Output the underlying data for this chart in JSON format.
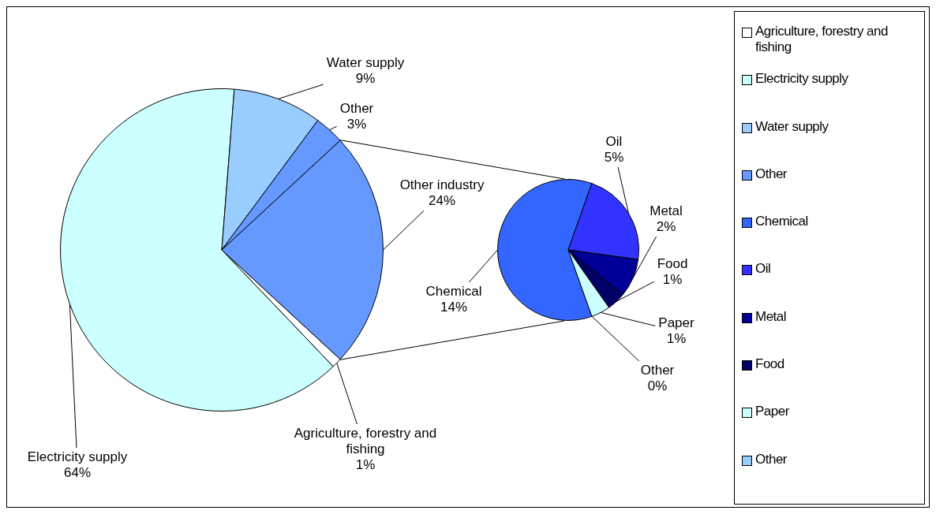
{
  "chart_data": [
    {
      "type": "pie",
      "categories": [
        "Agriculture, forestry and fishing",
        "Electricity supply",
        "Water supply",
        "Other",
        null
      ],
      "values": [
        1,
        64,
        9,
        3,
        24
      ],
      "colors": [
        "#ffffff",
        "#ccffff",
        "#99ccff",
        "#6699ff",
        "#6699ff"
      ],
      "value_labels": [
        "Agriculture, forestry and\nfishing\n1%",
        "Electricity supply\n64%",
        "Water supply\n9%",
        "Other\n3%",
        "Other industry\n24%"
      ],
      "legend": "right"
    },
    {
      "type": "pie",
      "categories": [
        "Chemical",
        "Oil",
        "Metal",
        "Food",
        "Paper",
        "Other"
      ],
      "values": [
        14,
        5,
        2,
        1,
        1,
        0
      ],
      "colors": [
        "#3366ff",
        "#3333ff",
        "#000099",
        "#000066",
        "#ccffff",
        "#99ccff"
      ],
      "value_labels": [
        "Chemical\n14%",
        "Oil\n5%",
        "Metal\n2%",
        "Food\n1%",
        "Paper\n1%",
        "Other\n0%"
      ],
      "legend": "right"
    }
  ]
}
